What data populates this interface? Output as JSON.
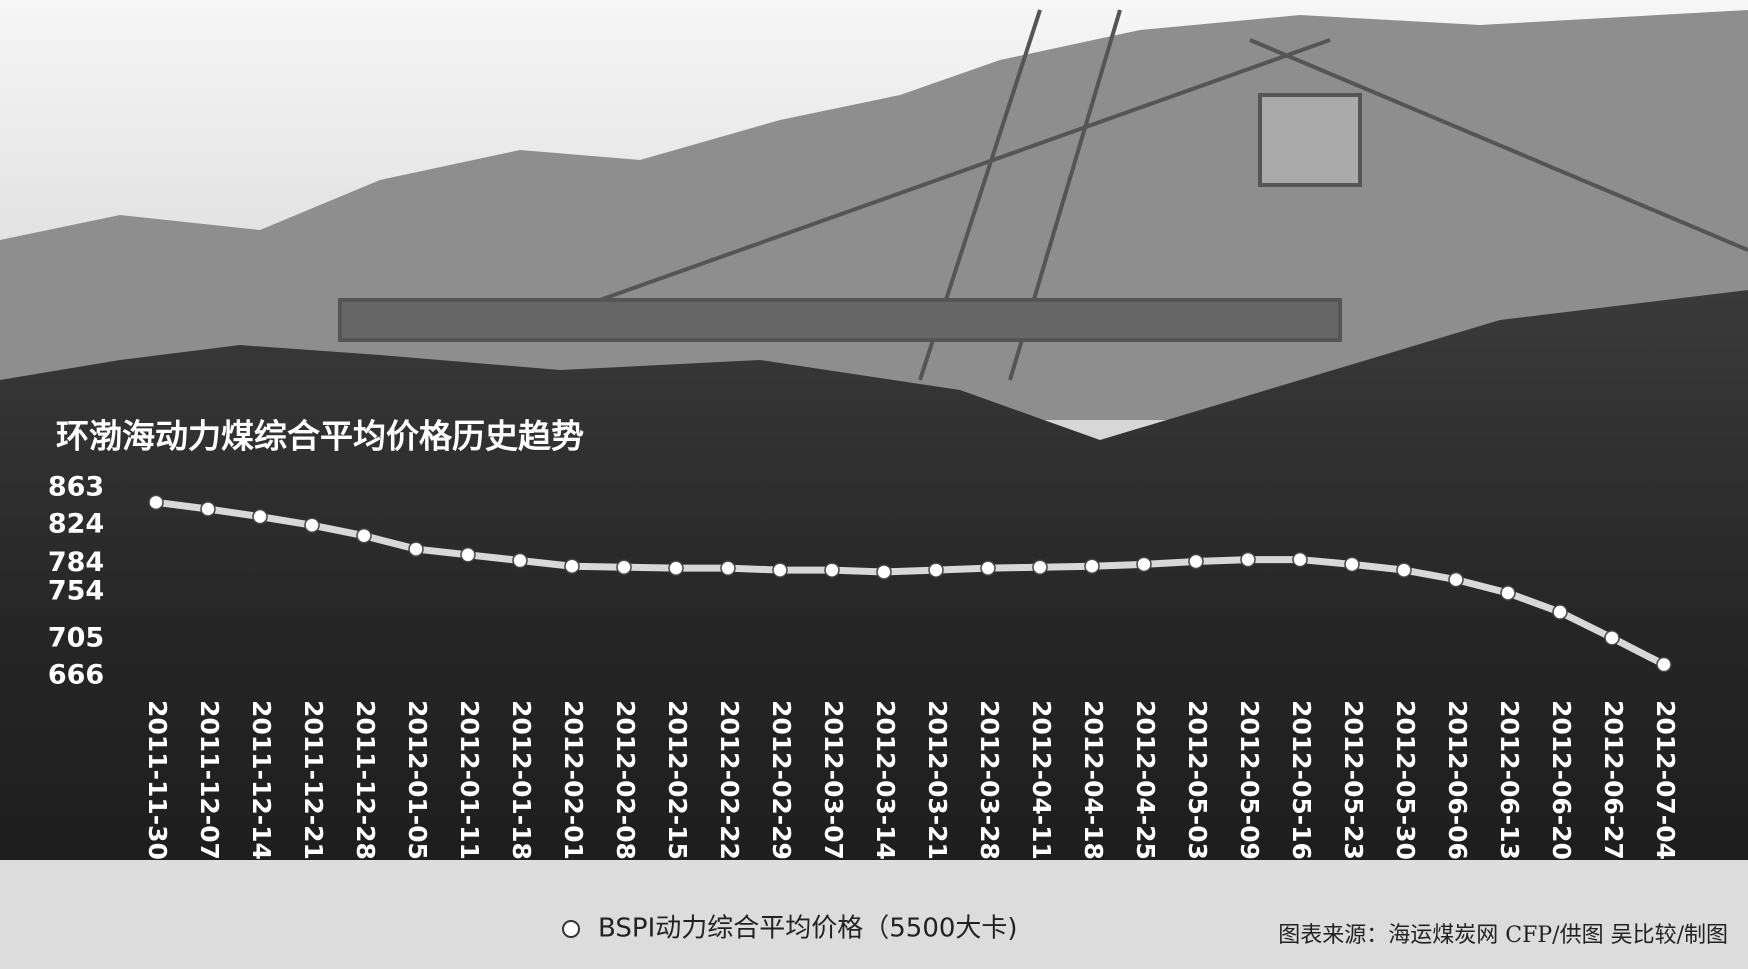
{
  "chart_data": {
    "type": "line",
    "title": "环渤海动力煤综合平均价格历史趋势",
    "categories": [
      "2011-11-30",
      "2011-12-07",
      "2011-12-14",
      "2011-12-21",
      "2011-12-28",
      "2012-01-05",
      "2012-01-11",
      "2012-01-18",
      "2012-02-01",
      "2012-02-08",
      "2012-02-15",
      "2012-02-22",
      "2012-02-29",
      "2012-03-07",
      "2012-03-14",
      "2012-03-21",
      "2012-03-28",
      "2012-04-11",
      "2012-04-18",
      "2012-04-25",
      "2012-05-03",
      "2012-05-09",
      "2012-05-16",
      "2012-05-23",
      "2012-05-30",
      "2012-06-06",
      "2012-06-13",
      "2012-06-20",
      "2012-06-27",
      "2012-07-04"
    ],
    "series": [
      {
        "name": "BSPI动力综合平均价格（5500大卡)",
        "color": "#d8d8d8",
        "values": [
          848,
          841,
          833,
          824,
          813,
          799,
          793,
          787,
          781,
          780,
          779,
          779,
          777,
          777,
          775,
          777,
          779,
          780,
          781,
          783,
          786,
          788,
          788,
          783,
          777,
          767,
          753,
          733,
          706,
          678
        ]
      }
    ],
    "ylim": [
      666,
      863
    ],
    "yticks": [
      863,
      824,
      784,
      754,
      705,
      666
    ],
    "source": "图表来源：海运煤炭网 CFP/供图 吴比较/制图"
  }
}
